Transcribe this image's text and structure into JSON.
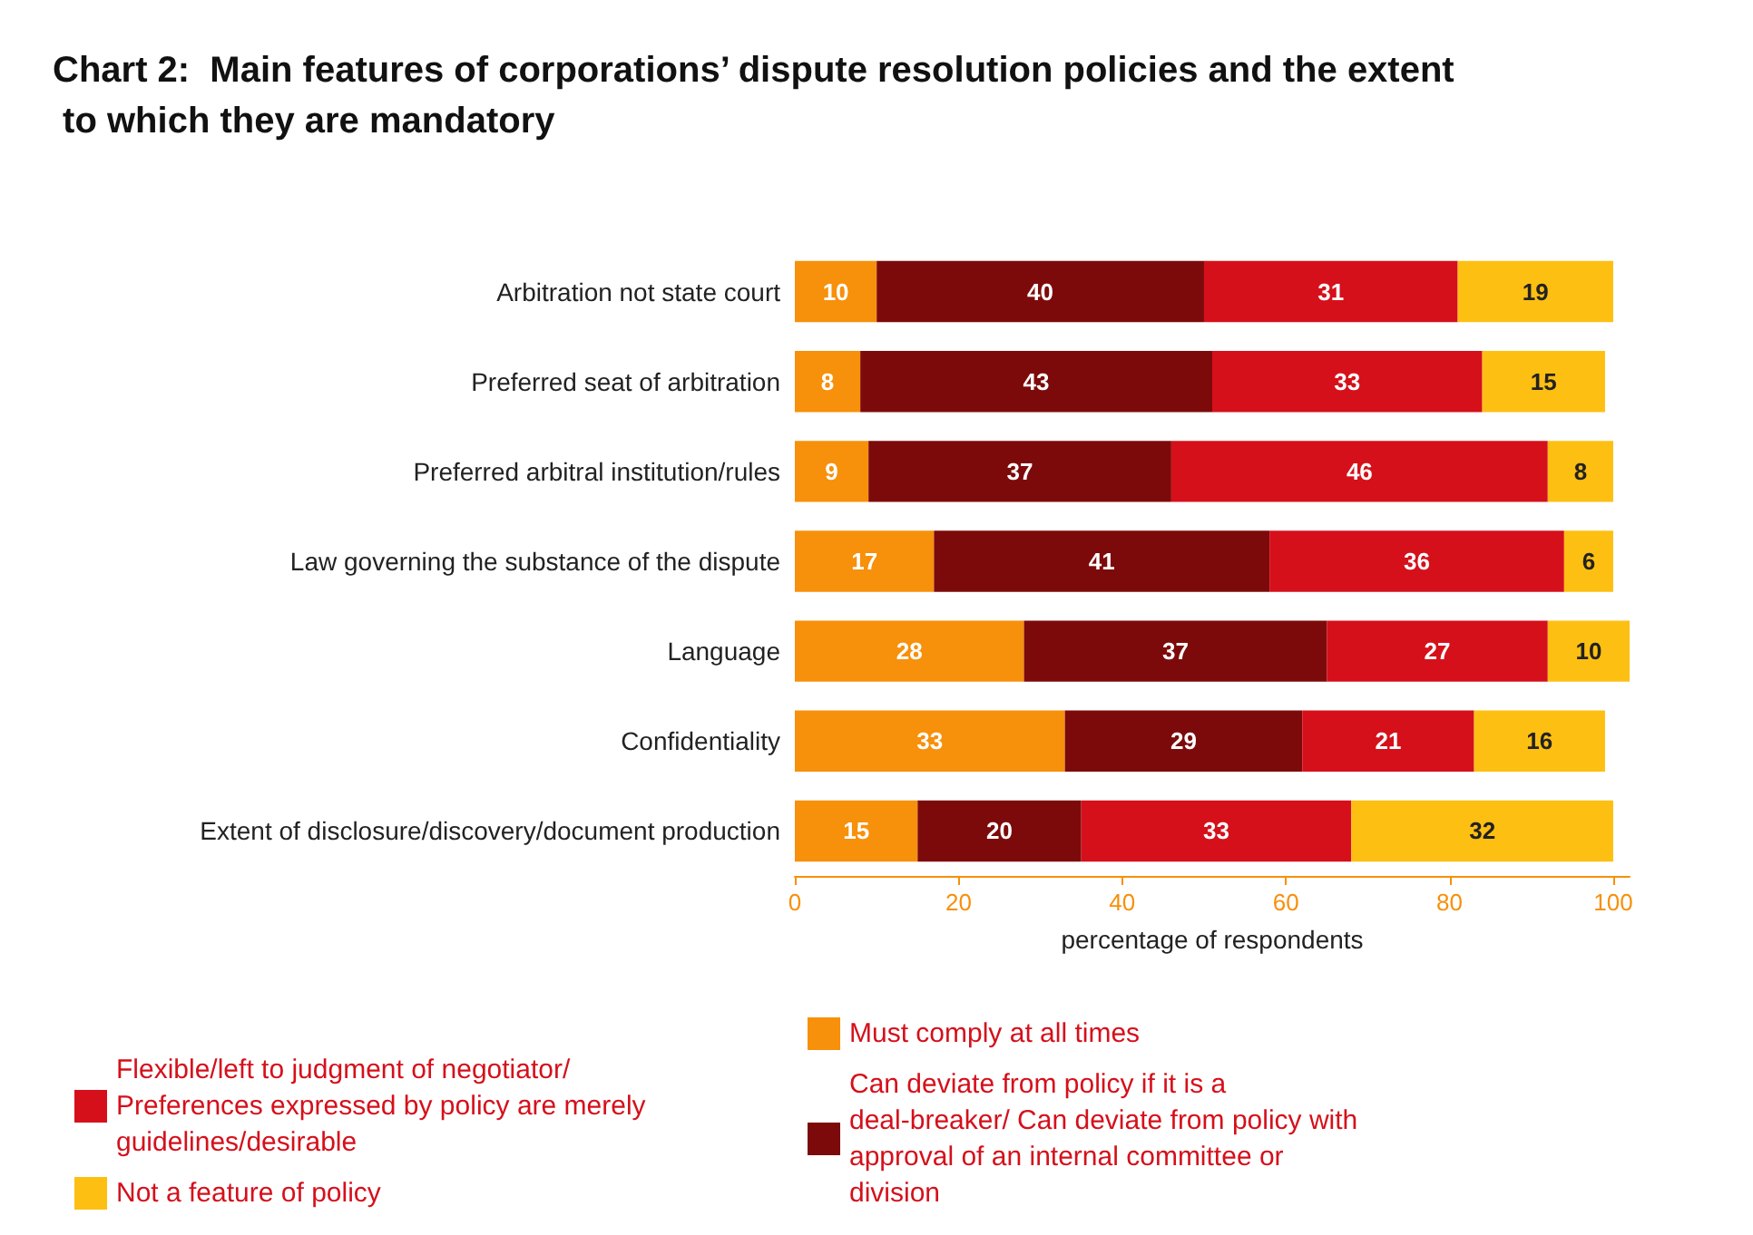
{
  "chart_data": {
    "type": "bar",
    "orientation": "horizontal",
    "stacked": true,
    "title": "Chart 2:  Main features of corporations’ dispute resolution policies and the extent to which they are mandatory",
    "xlabel": "percentage of respondents",
    "categories": [
      "Arbitration not state court",
      "Preferred seat of arbitration",
      "Preferred arbitral institution/rules",
      "Law governing the substance of the dispute",
      "Language",
      "Confidentiality",
      "Extent of disclosure/discovery/document production"
    ],
    "series": [
      {
        "name": "Must comply at all times",
        "color": "#f7900a",
        "values": [
          10,
          8,
          9,
          17,
          28,
          33,
          15
        ]
      },
      {
        "name": "Can deviate from policy if it is a deal-breaker/ Can deviate from policy with approval of an internal committee or division",
        "color": "#7d0a0a",
        "values": [
          40,
          43,
          37,
          41,
          37,
          29,
          20
        ]
      },
      {
        "name": "Flexible/left to judgment of negotiator/ Preferences expressed by policy are merely guidelines/desirable",
        "color": "#d5101b",
        "values": [
          31,
          33,
          46,
          36,
          27,
          21,
          33
        ]
      },
      {
        "name": "Not a feature of policy",
        "color": "#fdbf12",
        "values": [
          19,
          15,
          8,
          6,
          10,
          16,
          32
        ]
      }
    ],
    "xlim": [
      0,
      102
    ],
    "xticks": [
      0,
      20,
      40,
      60,
      80,
      100
    ],
    "grid": false,
    "data_labels": true,
    "legend": "bottom"
  }
}
